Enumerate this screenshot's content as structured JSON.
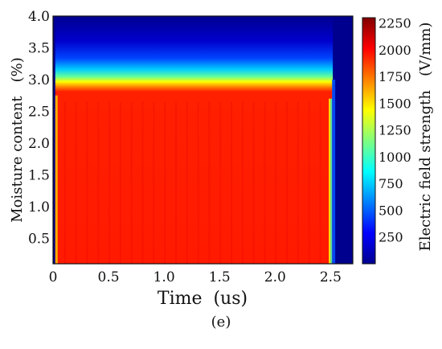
{
  "chart_data": {
    "type": "heatmap",
    "title": "",
    "xlabel": "Time  (us)",
    "ylabel": "Moisture content   (%)",
    "colorbar_label": "Electric field strength   (V/mm)",
    "xlim": [
      0,
      2.7
    ],
    "ylim": [
      0.1,
      4.0
    ],
    "x_ticks": [
      "0",
      "0.5",
      "1.0",
      "1.5",
      "2.0",
      "2.5"
    ],
    "y_ticks": [
      "0.5",
      "1.0",
      "1.5",
      "2.0",
      "2.5",
      "3.0",
      "3.5",
      "4.0"
    ],
    "colorbar_range": [
      0,
      2300
    ],
    "colorbar_ticks": [
      "250",
      "500",
      "750",
      "1000",
      "1250",
      "1500",
      "1750",
      "2000",
      "2250"
    ],
    "colormap": "jet",
    "field": {
      "pulse_start_us": 0.02,
      "pulse_end_us": 2.52,
      "plateau_v_per_mm": 2200,
      "transition_moisture_pct": 2.75,
      "background_v_per_mm": 50
    }
  },
  "panel_label": "(e)"
}
